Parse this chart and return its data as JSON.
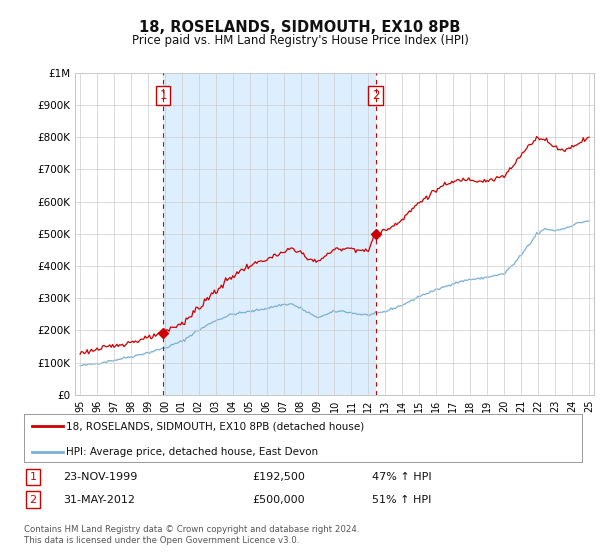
{
  "title": "18, ROSELANDS, SIDMOUTH, EX10 8PB",
  "subtitle": "Price paid vs. HM Land Registry's House Price Index (HPI)",
  "legend_line1": "18, ROSELANDS, SIDMOUTH, EX10 8PB (detached house)",
  "legend_line2": "HPI: Average price, detached house, East Devon",
  "transaction1_date": "23-NOV-1999",
  "transaction1_price": "£192,500",
  "transaction1_hpi": "47% ↑ HPI",
  "transaction1_year": 1999.9,
  "transaction1_value": 192500,
  "transaction2_date": "31-MAY-2012",
  "transaction2_price": "£500,000",
  "transaction2_hpi": "51% ↑ HPI",
  "transaction2_year": 2012.42,
  "transaction2_value": 500000,
  "footer": "Contains HM Land Registry data © Crown copyright and database right 2024.\nThis data is licensed under the Open Government Licence v3.0.",
  "hpi_color": "#7bafd4",
  "price_color": "#cc0000",
  "marker_color": "#cc0000",
  "highlight_color": "#ddeeff",
  "grid_color": "#cccccc",
  "background_color": "#ffffff",
  "plot_bg_color": "#ffffff",
  "ylim": [
    0,
    1000000
  ],
  "xlim_start": 1994.7,
  "xlim_end": 2025.3,
  "yticks": [
    0,
    100000,
    200000,
    300000,
    400000,
    500000,
    600000,
    700000,
    800000,
    900000,
    1000000
  ],
  "ytick_labels": [
    "£0",
    "£100K",
    "£200K",
    "£300K",
    "£400K",
    "£500K",
    "£600K",
    "£700K",
    "£800K",
    "£900K",
    "£1M"
  ],
  "xticks": [
    1995,
    1996,
    1997,
    1998,
    1999,
    2000,
    2001,
    2002,
    2003,
    2004,
    2005,
    2006,
    2007,
    2008,
    2009,
    2010,
    2011,
    2012,
    2013,
    2014,
    2015,
    2016,
    2017,
    2018,
    2019,
    2020,
    2021,
    2022,
    2023,
    2024,
    2025
  ],
  "xtick_labels": [
    "95",
    "96",
    "97",
    "98",
    "99",
    "00",
    "01",
    "02",
    "03",
    "04",
    "05",
    "06",
    "07",
    "08",
    "09",
    "10",
    "11",
    "12",
    "13",
    "14",
    "15",
    "16",
    "17",
    "18",
    "19",
    "20",
    "21",
    "22",
    "23",
    "24",
    "25"
  ]
}
